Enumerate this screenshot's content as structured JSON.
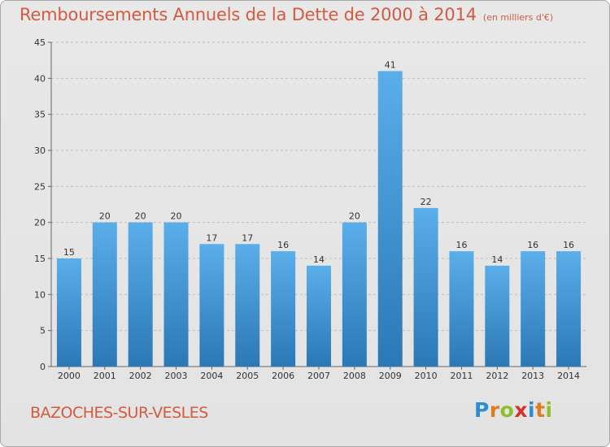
{
  "title": "Remboursements Annuels de la Dette de 2000 à 2014",
  "unit": "(en milliers d'€)",
  "commune": "BAZOCHES-SUR-VESLES",
  "logo": {
    "letters": [
      "P",
      "r",
      "o",
      "x",
      "i",
      "t",
      "i"
    ],
    "colors": [
      "#2f8ccf",
      "#e07b1f",
      "#8bbf2f",
      "#d8312b",
      "#2f8ccf",
      "#e07b1f",
      "#8bbf2f"
    ]
  },
  "colors": {
    "bar_top": "#5aaeea",
    "bar_bottom": "#2b78b6",
    "accent": "#d35b3f"
  },
  "chart_data": {
    "type": "bar",
    "categories": [
      "2000",
      "2001",
      "2002",
      "2003",
      "2004",
      "2005",
      "2006",
      "2007",
      "2008",
      "2009",
      "2010",
      "2011",
      "2012",
      "2013",
      "2014"
    ],
    "values": [
      15,
      20,
      20,
      20,
      17,
      17,
      16,
      14,
      20,
      41,
      22,
      16,
      14,
      16,
      16
    ],
    "ylim": [
      0,
      45
    ],
    "yticks": [
      0,
      5,
      10,
      15,
      20,
      25,
      30,
      35,
      40,
      45
    ],
    "grid": true,
    "xlabel": "",
    "ylabel": ""
  }
}
